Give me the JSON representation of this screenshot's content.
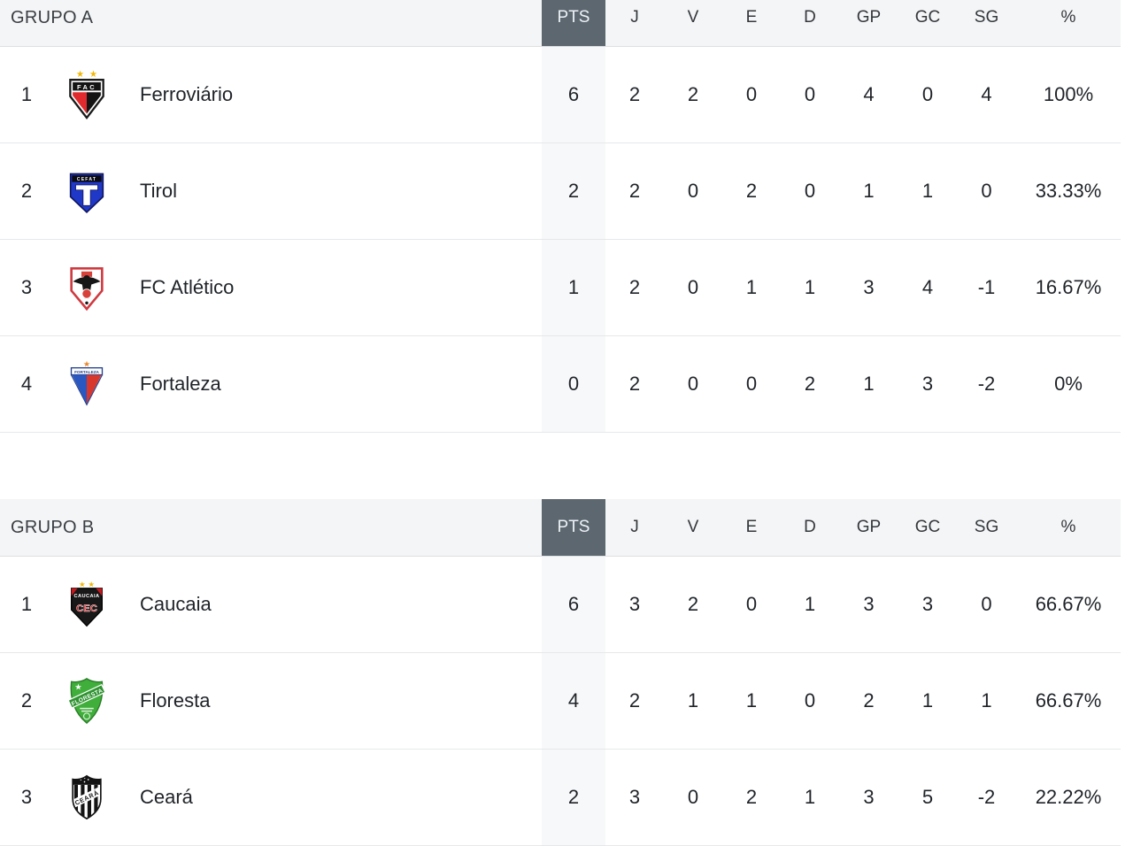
{
  "columns": [
    "PTS",
    "J",
    "V",
    "E",
    "D",
    "GP",
    "GC",
    "SG",
    "%"
  ],
  "groups": [
    {
      "label": "GRUPO A",
      "rows": [
        {
          "pos": "1",
          "team": "Ferroviário",
          "badge": "ferroviario",
          "stats": [
            "6",
            "2",
            "2",
            "0",
            "0",
            "4",
            "0",
            "4",
            "100%"
          ]
        },
        {
          "pos": "2",
          "team": "Tirol",
          "badge": "tirol",
          "stats": [
            "2",
            "2",
            "0",
            "2",
            "0",
            "1",
            "1",
            "0",
            "33.33%"
          ]
        },
        {
          "pos": "3",
          "team": "FC Atlético",
          "badge": "fc-atletico",
          "stats": [
            "1",
            "2",
            "0",
            "1",
            "1",
            "3",
            "4",
            "-1",
            "16.67%"
          ]
        },
        {
          "pos": "4",
          "team": "Fortaleza",
          "badge": "fortaleza",
          "stats": [
            "0",
            "2",
            "0",
            "0",
            "2",
            "1",
            "3",
            "-2",
            "0%"
          ]
        }
      ]
    },
    {
      "label": "GRUPO B",
      "rows": [
        {
          "pos": "1",
          "team": "Caucaia",
          "badge": "caucaia",
          "stats": [
            "6",
            "3",
            "2",
            "0",
            "1",
            "3",
            "3",
            "0",
            "66.67%"
          ]
        },
        {
          "pos": "2",
          "team": "Floresta",
          "badge": "floresta",
          "stats": [
            "4",
            "2",
            "1",
            "1",
            "0",
            "2",
            "1",
            "1",
            "66.67%"
          ]
        },
        {
          "pos": "3",
          "team": "Ceará",
          "badge": "ceara",
          "stats": [
            "2",
            "3",
            "0",
            "2",
            "1",
            "3",
            "5",
            "-2",
            "22.22%"
          ]
        }
      ]
    }
  ],
  "colors": {
    "pts_header_bg": "#5d6770",
    "pts_header_text": "#eef3f7",
    "header_row_bg": "#f4f5f6",
    "pts_col_bg": "#f7f8f9",
    "text": "#1f2328",
    "gold_star": "#f2b705"
  }
}
